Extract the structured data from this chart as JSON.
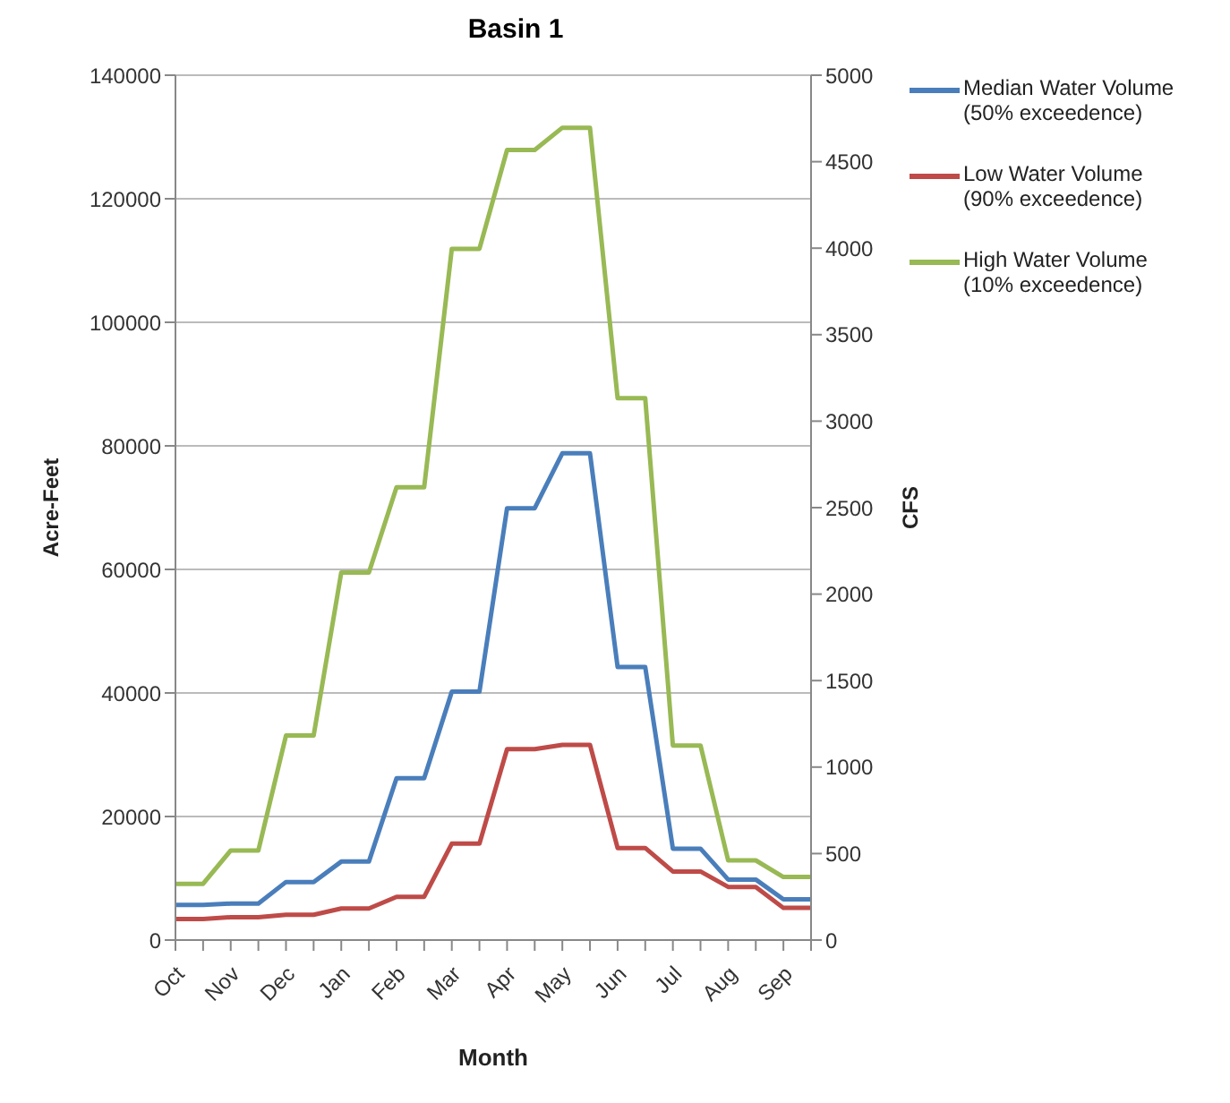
{
  "chart_data": {
    "type": "line",
    "title": "Basin 1",
    "xlabel": "Month",
    "ylabel": "Acre-Feet",
    "y2label": "CFS",
    "categories": [
      "Oct",
      null,
      "Nov",
      null,
      "Dec",
      null,
      "Jan",
      null,
      "Feb",
      null,
      "Mar",
      null,
      "Apr",
      null,
      "May",
      null,
      "Jun",
      null,
      "Jul",
      null,
      "Aug",
      null,
      "Sep",
      null
    ],
    "series": [
      {
        "name": "Median Water Volume (50% exceedence)",
        "color": "#4a7ebb",
        "values": [
          5700,
          5700,
          5900,
          5900,
          9400,
          9400,
          12700,
          12700,
          26200,
          26200,
          40200,
          40200,
          69900,
          69900,
          78800,
          78800,
          44200,
          44200,
          14800,
          14800,
          9800,
          9800,
          6600,
          6600
        ]
      },
      {
        "name": "Low Water Volume (90% exceedence)",
        "color": "#be4b48",
        "values": [
          3400,
          3400,
          3700,
          3700,
          4100,
          4100,
          5100,
          5100,
          7000,
          7000,
          15600,
          15600,
          30900,
          30900,
          31600,
          31600,
          14900,
          14900,
          11100,
          11100,
          8600,
          8600,
          5200,
          5200
        ]
      },
      {
        "name": "High Water Volume (10% exceedence)",
        "color": "#98b954",
        "values": [
          9100,
          9100,
          14500,
          14500,
          33100,
          33100,
          59500,
          59500,
          73300,
          73300,
          111900,
          111900,
          127900,
          127900,
          131500,
          131500,
          87700,
          87700,
          31500,
          31500,
          12900,
          12900,
          10200,
          10200
        ]
      }
    ],
    "ylim": [
      0,
      140000
    ],
    "yticks": [
      0,
      20000,
      40000,
      60000,
      80000,
      100000,
      120000,
      140000
    ],
    "y2lim": [
      0,
      5000
    ],
    "y2ticks": [
      0,
      500,
      1000,
      1500,
      2000,
      2500,
      3000,
      3500,
      4000,
      4500,
      5000
    ],
    "grid": "y",
    "legend": "right",
    "marker": "none",
    "line_style": "solid"
  }
}
